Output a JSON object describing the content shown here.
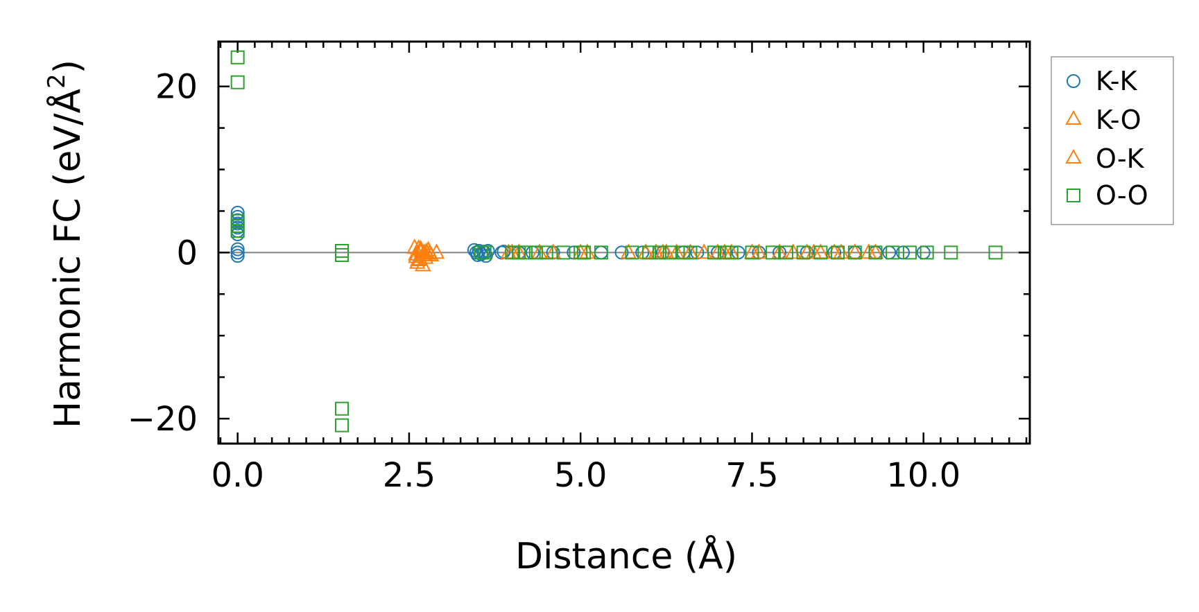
{
  "chart_data": {
    "type": "scatter",
    "xlabel": "Distance (Å)",
    "ylabel_main": "Harmonic FC (eV/Å",
    "ylabel_sup": "2",
    "ylabel_close": ")",
    "xlim": [
      -0.28,
      11.55
    ],
    "ylim": [
      -23,
      25.4
    ],
    "xticks": [
      0.0,
      2.5,
      5.0,
      7.5,
      10.0
    ],
    "xtick_labels": [
      "0.0",
      "2.5",
      "5.0",
      "7.5",
      "10.0"
    ],
    "xminor": [
      -0.25,
      0.25,
      0.5,
      0.75,
      1.0,
      1.25,
      1.5,
      1.75,
      2.0,
      2.25,
      2.75,
      3.0,
      3.25,
      3.5,
      3.75,
      4.0,
      4.25,
      4.5,
      4.75,
      5.25,
      5.5,
      5.75,
      6.0,
      6.25,
      6.5,
      6.75,
      7.0,
      7.25,
      7.75,
      8.0,
      8.25,
      8.5,
      8.75,
      9.0,
      9.25,
      9.5,
      9.75,
      10.25,
      10.5,
      10.75,
      11.0,
      11.25,
      11.5
    ],
    "yticks": [
      -20,
      0,
      20
    ],
    "ytick_labels": [
      "−20",
      "0",
      "20"
    ],
    "yminor": [
      -15,
      -10,
      -5,
      5,
      10,
      15
    ],
    "zero_line": true,
    "grid": false,
    "legend_position": "outside-right-top",
    "series": [
      {
        "name": "K-K",
        "marker": "circle",
        "color": "#1f77b4",
        "points": [
          [
            0,
            4.8
          ],
          [
            0,
            4.3
          ],
          [
            0,
            3.9
          ],
          [
            0,
            3.5
          ],
          [
            0,
            3.0
          ],
          [
            0,
            2.6
          ],
          [
            0,
            2.2
          ],
          [
            0,
            0.4
          ],
          [
            0,
            0
          ],
          [
            0,
            -0.4
          ],
          [
            3.45,
            0.3
          ],
          [
            3.48,
            0
          ],
          [
            3.5,
            -0.3
          ],
          [
            3.52,
            0.2
          ],
          [
            3.55,
            -0.2
          ],
          [
            3.58,
            0.1
          ],
          [
            3.6,
            0
          ],
          [
            3.62,
            -0.4
          ],
          [
            3.65,
            0.2
          ],
          [
            3.85,
            0
          ],
          [
            3.88,
            0.1
          ],
          [
            4.1,
            0
          ],
          [
            4.3,
            0
          ],
          [
            4.6,
            0
          ],
          [
            4.9,
            0
          ],
          [
            5.3,
            0
          ],
          [
            5.6,
            0
          ],
          [
            5.9,
            0
          ],
          [
            6.2,
            0
          ],
          [
            6.5,
            0
          ],
          [
            6.7,
            0
          ],
          [
            7.0,
            0
          ],
          [
            7.3,
            0
          ],
          [
            7.6,
            0
          ],
          [
            7.9,
            0
          ],
          [
            8.3,
            0
          ],
          [
            8.7,
            0
          ],
          [
            9.0,
            0
          ],
          [
            9.3,
            0
          ],
          [
            9.5,
            0
          ],
          [
            9.7,
            0
          ],
          [
            10.0,
            0
          ]
        ]
      },
      {
        "name": "K-O",
        "marker": "triangle",
        "color": "#ff7f0e",
        "points": [
          [
            2.6,
            -0.5
          ],
          [
            2.62,
            -1.2
          ],
          [
            2.64,
            0.5
          ],
          [
            2.66,
            -0.8
          ],
          [
            2.68,
            0.2
          ],
          [
            2.7,
            -1.5
          ],
          [
            2.72,
            0
          ],
          [
            2.74,
            -0.6
          ],
          [
            2.78,
            0.3
          ],
          [
            2.82,
            -0.3
          ],
          [
            2.9,
            0
          ],
          [
            3.95,
            0
          ],
          [
            4.1,
            0
          ],
          [
            4.6,
            0
          ],
          [
            5.0,
            0
          ],
          [
            5.7,
            0
          ],
          [
            5.95,
            0
          ],
          [
            6.1,
            0
          ],
          [
            6.2,
            0
          ],
          [
            6.4,
            0
          ],
          [
            6.8,
            0
          ],
          [
            7.0,
            0
          ],
          [
            7.2,
            0
          ],
          [
            7.5,
            0
          ],
          [
            7.9,
            0
          ],
          [
            8.3,
            0
          ],
          [
            8.5,
            0
          ],
          [
            8.7,
            0
          ],
          [
            9.0,
            0
          ],
          [
            9.3,
            0
          ]
        ]
      },
      {
        "name": "O-K",
        "marker": "triangle",
        "color": "#ff7f0e",
        "points": [
          [
            2.58,
            0.6
          ],
          [
            2.6,
            -0.2
          ],
          [
            2.63,
            -0.9
          ],
          [
            2.67,
            0.4
          ],
          [
            2.7,
            -0.3
          ],
          [
            2.75,
            0.1
          ],
          [
            2.8,
            -0.1
          ],
          [
            4.0,
            0
          ],
          [
            4.4,
            0
          ],
          [
            5.1,
            0
          ],
          [
            5.95,
            0
          ],
          [
            6.25,
            0
          ],
          [
            6.6,
            0
          ],
          [
            7.1,
            0
          ],
          [
            7.6,
            0
          ],
          [
            8.1,
            0
          ],
          [
            8.4,
            0
          ],
          [
            8.8,
            0
          ],
          [
            9.2,
            0
          ]
        ]
      },
      {
        "name": "O-O",
        "marker": "square",
        "color": "#2ca02c",
        "points": [
          [
            0,
            23.5
          ],
          [
            0,
            20.5
          ],
          [
            0,
            3.8
          ],
          [
            0,
            3.2
          ],
          [
            0,
            2.6
          ],
          [
            1.52,
            0.2
          ],
          [
            1.52,
            -0.3
          ],
          [
            1.52,
            -18.8
          ],
          [
            1.52,
            -20.8
          ],
          [
            3.55,
            0
          ],
          [
            3.6,
            0
          ],
          [
            4.0,
            0
          ],
          [
            4.1,
            0
          ],
          [
            4.2,
            0
          ],
          [
            4.35,
            0
          ],
          [
            4.5,
            0
          ],
          [
            4.75,
            0
          ],
          [
            5.0,
            0
          ],
          [
            5.05,
            0
          ],
          [
            5.3,
            0
          ],
          [
            5.75,
            0
          ],
          [
            6.0,
            0
          ],
          [
            6.15,
            0
          ],
          [
            6.3,
            0
          ],
          [
            6.5,
            0
          ],
          [
            6.6,
            0
          ],
          [
            6.95,
            0
          ],
          [
            7.1,
            0
          ],
          [
            7.2,
            0
          ],
          [
            7.5,
            0
          ],
          [
            7.8,
            0
          ],
          [
            8.0,
            0
          ],
          [
            8.25,
            0
          ],
          [
            8.5,
            0
          ],
          [
            8.75,
            0
          ],
          [
            9.0,
            0
          ],
          [
            9.3,
            0
          ],
          [
            9.55,
            0
          ],
          [
            9.8,
            0
          ],
          [
            10.05,
            0
          ],
          [
            10.4,
            0
          ],
          [
            11.05,
            0
          ]
        ]
      }
    ]
  }
}
